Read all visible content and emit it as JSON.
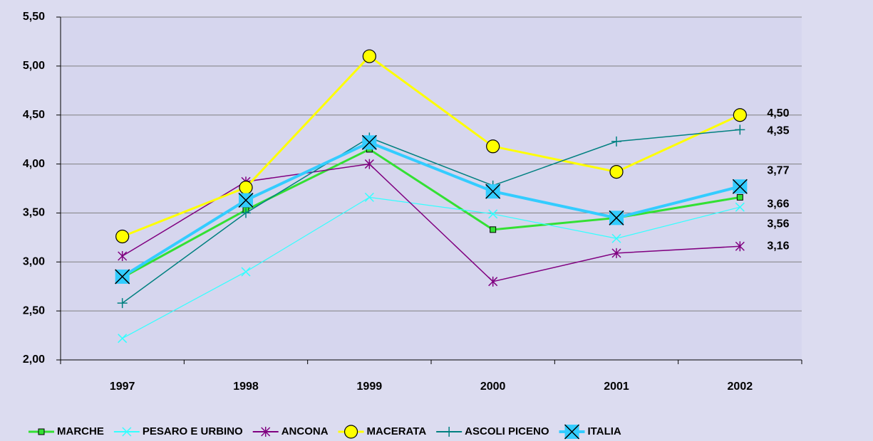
{
  "chart_data": {
    "type": "line",
    "categories": [
      "1997",
      "1998",
      "1999",
      "2000",
      "2001",
      "2002"
    ],
    "ylim": [
      2.0,
      5.5
    ],
    "yticks": [
      {
        "value": 2.0,
        "label": "2,00"
      },
      {
        "value": 2.5,
        "label": "2,50"
      },
      {
        "value": 3.0,
        "label": "3,00"
      },
      {
        "value": 3.5,
        "label": "3,50"
      },
      {
        "value": 4.0,
        "label": "4,00"
      },
      {
        "value": 4.5,
        "label": "4,50"
      },
      {
        "value": 5.0,
        "label": "5,00"
      },
      {
        "value": 5.5,
        "label": "5,50"
      }
    ],
    "grid": true,
    "legend": "bottom",
    "series": [
      {
        "name": "MARCHE",
        "color": "#33e033",
        "marker": "square",
        "values": [
          2.84,
          3.53,
          4.15,
          3.33,
          3.45,
          3.66
        ],
        "value_labels": [
          null,
          null,
          null,
          null,
          null,
          "3,66"
        ]
      },
      {
        "name": "PESARO E URBINO",
        "color": "#33ffff",
        "marker": "x",
        "values": [
          2.22,
          2.9,
          3.66,
          3.49,
          3.24,
          3.56
        ],
        "value_labels": [
          null,
          null,
          null,
          null,
          null,
          "3,56"
        ]
      },
      {
        "name": "ANCONA",
        "color": "#800080",
        "marker": "star",
        "values": [
          3.06,
          3.82,
          4.0,
          2.8,
          3.09,
          3.16
        ],
        "value_labels": [
          null,
          null,
          null,
          null,
          null,
          "3,16"
        ]
      },
      {
        "name": "MACERATA",
        "color": "#ffff00",
        "marker": "circle",
        "values": [
          3.26,
          3.76,
          5.1,
          4.18,
          3.92,
          4.5
        ],
        "value_labels": [
          null,
          null,
          null,
          null,
          null,
          "4,50"
        ]
      },
      {
        "name": "ASCOLI PICENO",
        "color": "#008080",
        "marker": "plus",
        "values": [
          2.58,
          3.5,
          4.27,
          3.78,
          4.23,
          4.35
        ],
        "value_labels": [
          null,
          null,
          null,
          null,
          null,
          "4,35"
        ]
      },
      {
        "name": "ITALIA",
        "color": "#33ccff",
        "marker": "bigx",
        "values": [
          2.85,
          3.63,
          4.22,
          3.72,
          3.45,
          3.77
        ],
        "value_labels": [
          null,
          null,
          null,
          null,
          null,
          "3,77"
        ]
      }
    ]
  }
}
